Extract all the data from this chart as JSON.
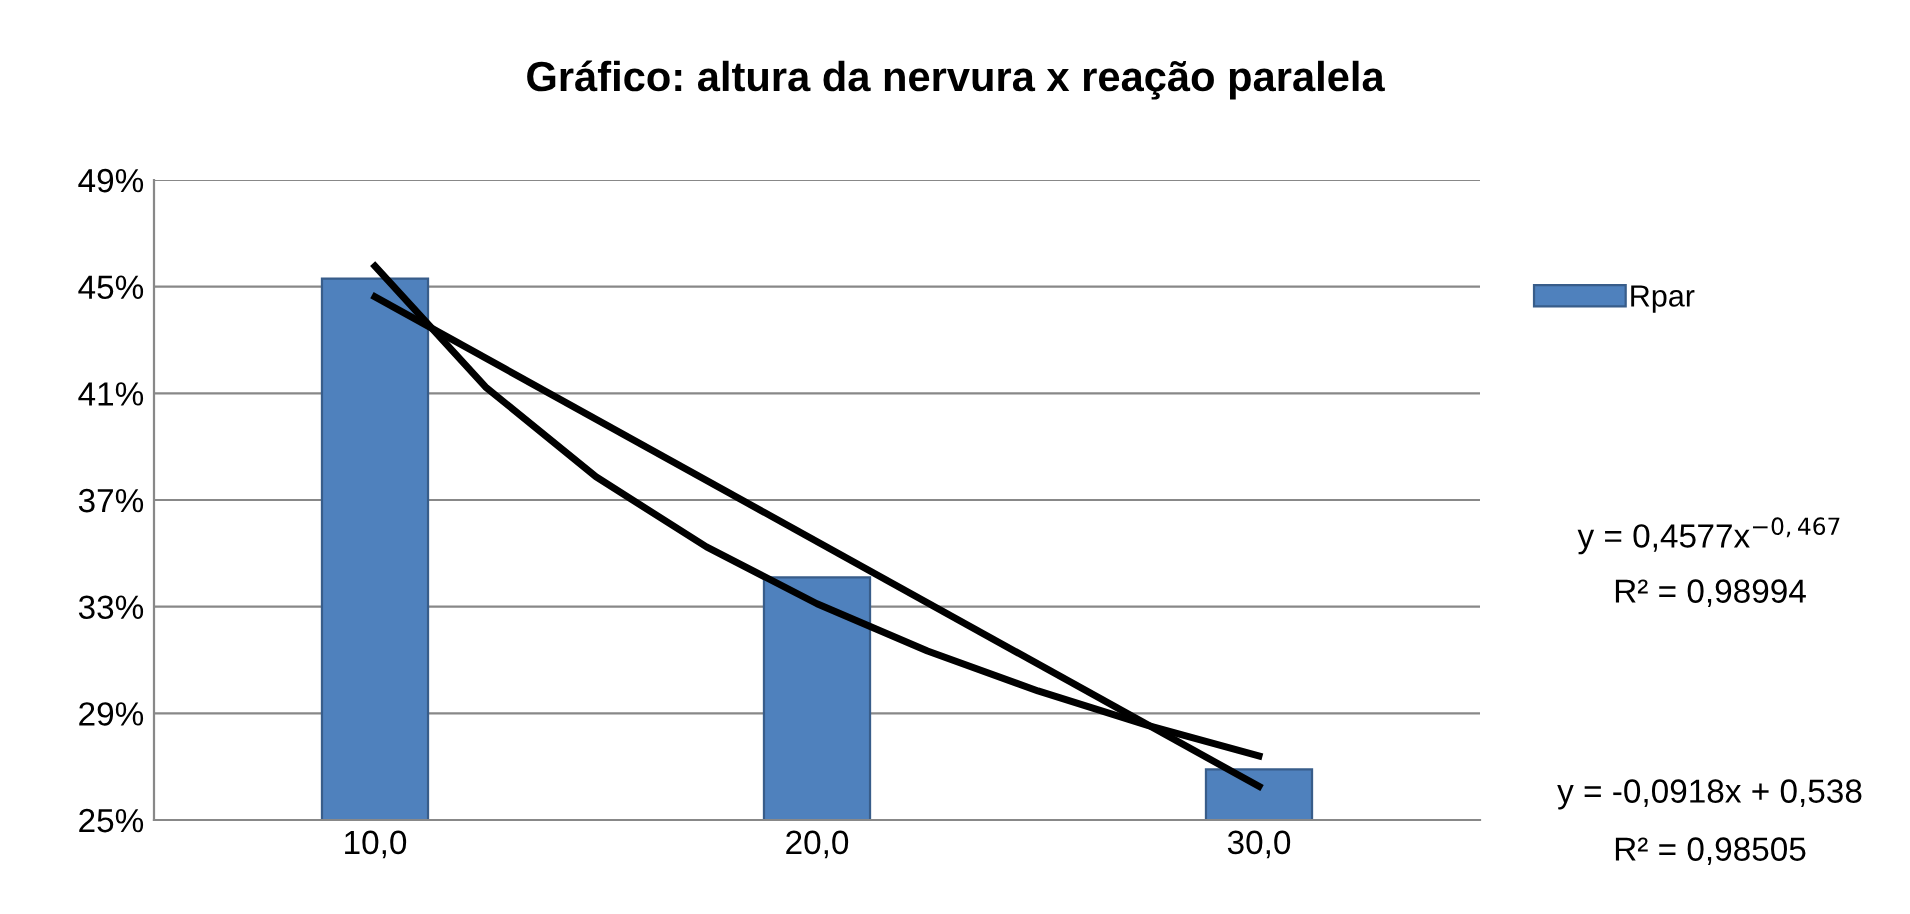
{
  "chart_data": {
    "type": "bar",
    "title": "Gráfico: altura da nervura x reação paralela",
    "x": [
      10,
      20,
      30
    ],
    "xlim": [
      5,
      35
    ],
    "xticks": [
      {
        "value": 10,
        "label": "10,0"
      },
      {
        "value": 20,
        "label": "20,0"
      },
      {
        "value": 30,
        "label": "30,0"
      }
    ],
    "ylim": [
      25,
      49
    ],
    "yticks": [
      {
        "value": 25,
        "label": "25%"
      },
      {
        "value": 29,
        "label": "29%"
      },
      {
        "value": 33,
        "label": "33%"
      },
      {
        "value": 37,
        "label": "37%"
      },
      {
        "value": 41,
        "label": "41%"
      },
      {
        "value": 45,
        "label": "45%"
      },
      {
        "value": 49,
        "label": "49%"
      }
    ],
    "grid": "y",
    "legend": "top right",
    "series": [
      {
        "name": "Rpar",
        "color": "#4f81bd",
        "values": [
          45.3,
          34.1,
          26.9
        ]
      },
      {
        "type": "line",
        "color": "#000000",
        "x": [
          10,
          30
        ],
        "values": [
          44.62,
          26.26
        ]
      },
      {
        "type": "line",
        "color": "#000000",
        "x": [
          10,
          12.5,
          15,
          17.5,
          20,
          22.5,
          25,
          27.5,
          30
        ],
        "values": [
          45.77,
          41.24,
          37.87,
          35.24,
          33.11,
          31.34,
          29.84,
          28.54,
          27.4
        ]
      }
    ],
    "annotations": [
      "y = 0,4577x$^{−0,467}$",
      "R² = 0,98994",
      "y = -0,0918x + 0,538",
      "R² = 0,98505"
    ]
  }
}
